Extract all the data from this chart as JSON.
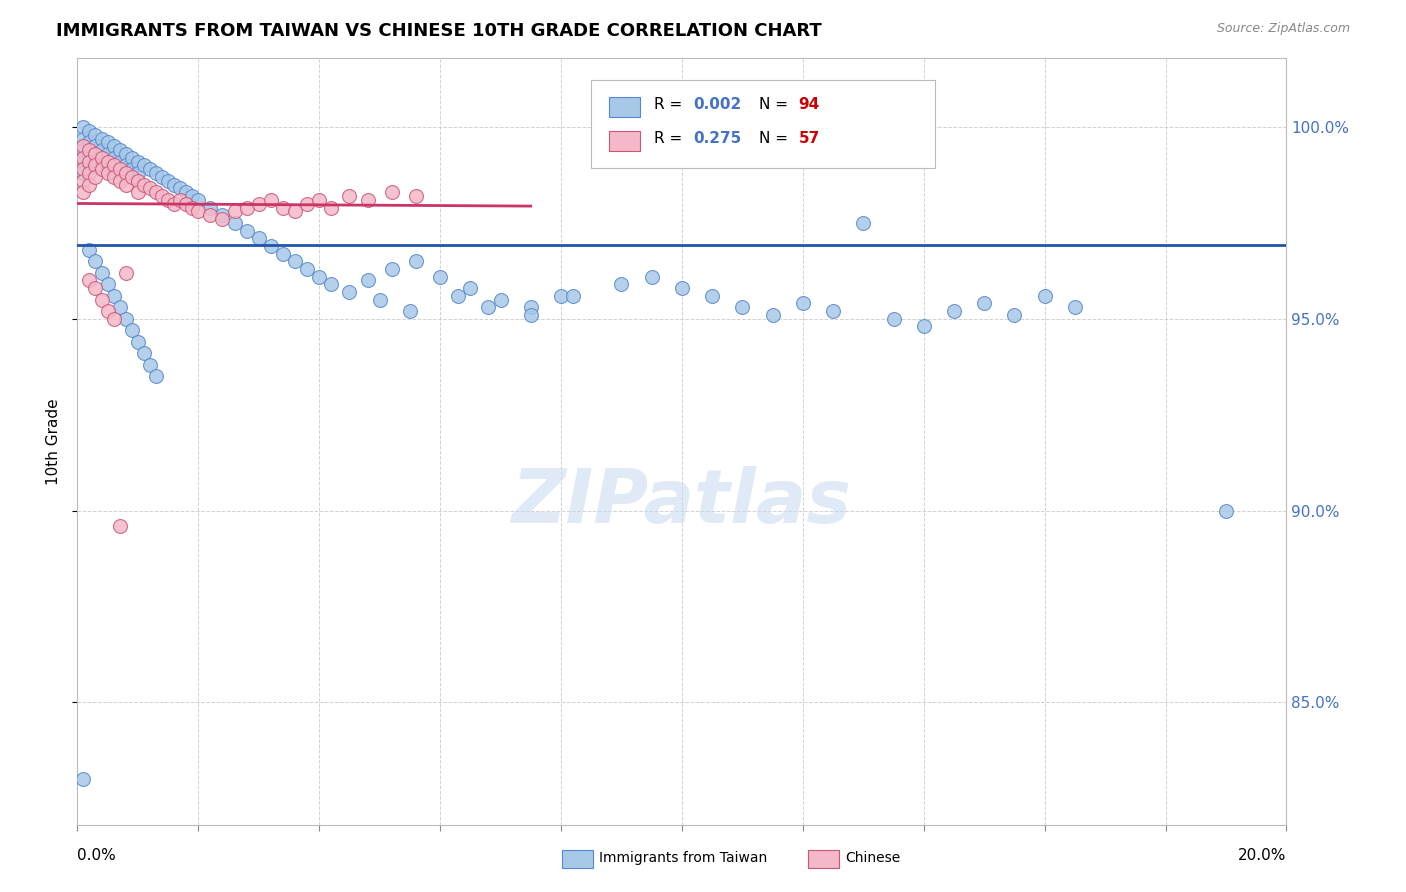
{
  "title": "IMMIGRANTS FROM TAIWAN VS CHINESE 10TH GRADE CORRELATION CHART",
  "source": "Source: ZipAtlas.com",
  "ylabel": "10th Grade",
  "legend_blue_label": "Immigrants from Taiwan",
  "legend_pink_label": "Chinese",
  "blue_color": "#a8c8e8",
  "blue_edge_color": "#5588cc",
  "pink_color": "#f4b8c8",
  "pink_edge_color": "#cc5577",
  "trend_blue_color": "#2255aa",
  "trend_pink_color": "#cc3366",
  "background_color": "#ffffff",
  "grid_color": "#cccccc",
  "title_fontsize": 13,
  "axis_fontsize": 11,
  "tick_fontsize": 11,
  "xmin": 0.0,
  "xmax": 0.2,
  "ymin": 0.818,
  "ymax": 1.018,
  "right_yticks": [
    0.85,
    0.9,
    0.95,
    1.0
  ],
  "right_ytick_labels": [
    "85.0%",
    "90.0%",
    "95.0%",
    "100.0%"
  ],
  "blue_x": [
    0.001,
    0.001,
    0.001,
    0.001,
    0.001,
    0.002,
    0.002,
    0.002,
    0.002,
    0.003,
    0.003,
    0.003,
    0.004,
    0.004,
    0.004,
    0.005,
    0.005,
    0.005,
    0.006,
    0.006,
    0.007,
    0.007,
    0.008,
    0.008,
    0.009,
    0.009,
    0.01,
    0.01,
    0.011,
    0.012,
    0.013,
    0.014,
    0.015,
    0.016,
    0.017,
    0.018,
    0.019,
    0.02,
    0.022,
    0.024,
    0.026,
    0.028,
    0.03,
    0.032,
    0.034,
    0.036,
    0.038,
    0.04,
    0.042,
    0.045,
    0.048,
    0.052,
    0.056,
    0.06,
    0.065,
    0.07,
    0.075,
    0.08,
    0.09,
    0.095,
    0.1,
    0.105,
    0.11,
    0.115,
    0.12,
    0.125,
    0.13,
    0.135,
    0.14,
    0.145,
    0.15,
    0.155,
    0.16,
    0.165,
    0.002,
    0.003,
    0.004,
    0.005,
    0.006,
    0.007,
    0.008,
    0.009,
    0.01,
    0.011,
    0.012,
    0.013,
    0.05,
    0.055,
    0.063,
    0.068,
    0.075,
    0.082,
    0.19,
    0.001
  ],
  "blue_y": [
    1.0,
    0.997,
    0.994,
    0.991,
    0.988,
    0.999,
    0.996,
    0.993,
    0.99,
    0.998,
    0.995,
    0.992,
    0.997,
    0.994,
    0.991,
    0.996,
    0.993,
    0.99,
    0.995,
    0.992,
    0.994,
    0.991,
    0.993,
    0.99,
    0.992,
    0.989,
    0.991,
    0.988,
    0.99,
    0.989,
    0.988,
    0.987,
    0.986,
    0.985,
    0.984,
    0.983,
    0.982,
    0.981,
    0.979,
    0.977,
    0.975,
    0.973,
    0.971,
    0.969,
    0.967,
    0.965,
    0.963,
    0.961,
    0.959,
    0.957,
    0.96,
    0.963,
    0.965,
    0.961,
    0.958,
    0.955,
    0.953,
    0.956,
    0.959,
    0.961,
    0.958,
    0.956,
    0.953,
    0.951,
    0.954,
    0.952,
    0.975,
    0.95,
    0.948,
    0.952,
    0.954,
    0.951,
    0.956,
    0.953,
    0.968,
    0.965,
    0.962,
    0.959,
    0.956,
    0.953,
    0.95,
    0.947,
    0.944,
    0.941,
    0.938,
    0.935,
    0.955,
    0.952,
    0.956,
    0.953,
    0.951,
    0.956,
    0.9,
    0.83
  ],
  "pink_x": [
    0.001,
    0.001,
    0.001,
    0.001,
    0.001,
    0.002,
    0.002,
    0.002,
    0.002,
    0.003,
    0.003,
    0.003,
    0.004,
    0.004,
    0.005,
    0.005,
    0.006,
    0.006,
    0.007,
    0.007,
    0.008,
    0.008,
    0.009,
    0.01,
    0.01,
    0.011,
    0.012,
    0.013,
    0.014,
    0.015,
    0.016,
    0.017,
    0.018,
    0.019,
    0.02,
    0.022,
    0.024,
    0.026,
    0.028,
    0.03,
    0.032,
    0.034,
    0.036,
    0.038,
    0.04,
    0.042,
    0.045,
    0.048,
    0.052,
    0.056,
    0.002,
    0.003,
    0.004,
    0.005,
    0.006,
    0.007,
    0.008
  ],
  "pink_y": [
    0.995,
    0.992,
    0.989,
    0.986,
    0.983,
    0.994,
    0.991,
    0.988,
    0.985,
    0.993,
    0.99,
    0.987,
    0.992,
    0.989,
    0.991,
    0.988,
    0.99,
    0.987,
    0.989,
    0.986,
    0.988,
    0.985,
    0.987,
    0.986,
    0.983,
    0.985,
    0.984,
    0.983,
    0.982,
    0.981,
    0.98,
    0.981,
    0.98,
    0.979,
    0.978,
    0.977,
    0.976,
    0.978,
    0.979,
    0.98,
    0.981,
    0.979,
    0.978,
    0.98,
    0.981,
    0.979,
    0.982,
    0.981,
    0.983,
    0.982,
    0.96,
    0.958,
    0.955,
    0.952,
    0.95,
    0.896,
    0.962
  ]
}
